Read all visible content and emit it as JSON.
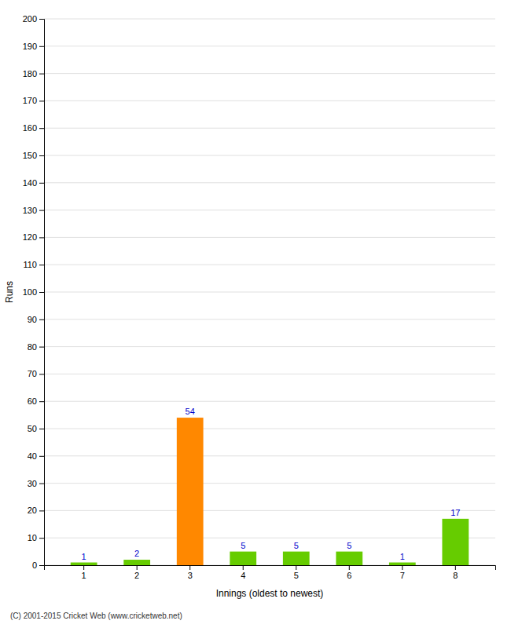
{
  "chart_data": {
    "type": "bar",
    "categories": [
      "1",
      "2",
      "3",
      "4",
      "5",
      "6",
      "7",
      "8"
    ],
    "values": [
      1,
      2,
      54,
      5,
      5,
      5,
      1,
      17
    ],
    "colors": [
      "#66cc00",
      "#66cc00",
      "#ff8800",
      "#66cc00",
      "#66cc00",
      "#66cc00",
      "#66cc00",
      "#66cc00"
    ],
    "xlabel": "Innings (oldest to newest)",
    "ylabel": "Runs",
    "ylim": [
      0,
      200
    ],
    "yticks": [
      0,
      10,
      20,
      30,
      40,
      50,
      60,
      70,
      80,
      90,
      100,
      110,
      120,
      130,
      140,
      150,
      160,
      170,
      180,
      190,
      200
    ],
    "grid": true,
    "data_labels": true,
    "annotations": [
      "(C) 2001-2015 Cricket Web (www.cricketweb.net)"
    ]
  }
}
